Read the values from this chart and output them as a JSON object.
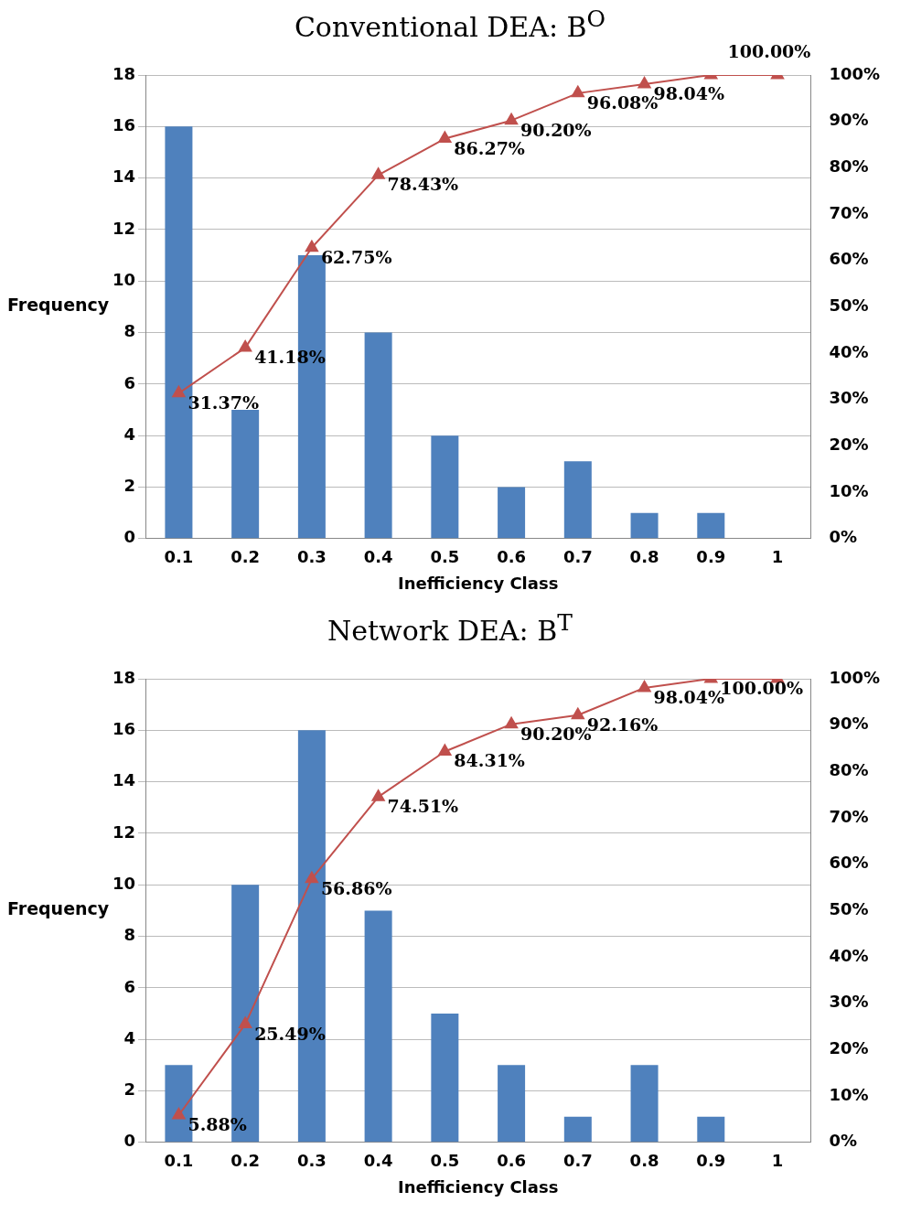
{
  "chart_data": [
    {
      "type": "bar",
      "title": "Conventional DEA: B$^{O}$",
      "xlabel": "Inefficiency Class",
      "ylabel": "Frequency",
      "categories": [
        "0.1",
        "0.2",
        "0.3",
        "0.4",
        "0.5",
        "0.6",
        "0.7",
        "0.8",
        "0.9",
        "1"
      ],
      "series": [
        {
          "color": "#4f81bd",
          "values": [
            16,
            5,
            11,
            8,
            4,
            2,
            3,
            1,
            1,
            0
          ]
        },
        {
          "type": "line",
          "axis": "y2",
          "color": "#c0504d",
          "marker": "triangle",
          "values": [
            31.37,
            41.18,
            62.75,
            78.43,
            86.27,
            90.2,
            96.08,
            98.04,
            100,
            100
          ],
          "value_labels": [
            "31.37%",
            "41.18%",
            "62.75%",
            "78.43%",
            "86.27%",
            "90.20%",
            "96.08%",
            "98.04%",
            null,
            "100.00%"
          ]
        }
      ],
      "ylim": [
        0,
        18
      ],
      "yticks": [
        0,
        2,
        4,
        6,
        8,
        10,
        12,
        14,
        16,
        18
      ],
      "y2lim": [
        0,
        100
      ],
      "y2ticks": [
        {
          "value": 0,
          "label": "0%"
        },
        {
          "value": 10,
          "label": "10%"
        },
        {
          "value": 20,
          "label": "20%"
        },
        {
          "value": 30,
          "label": "30%"
        },
        {
          "value": 40,
          "label": "40%"
        },
        {
          "value": 50,
          "label": "50%"
        },
        {
          "value": 60,
          "label": "60%"
        },
        {
          "value": 70,
          "label": "70%"
        },
        {
          "value": 80,
          "label": "80%"
        },
        {
          "value": 90,
          "label": "90%"
        },
        {
          "value": 100,
          "label": "100%"
        }
      ],
      "grid": "y",
      "legend": false
    },
    {
      "type": "bar",
      "title": "Network DEA: B$^{T}$",
      "xlabel": "Inefficiency Class",
      "ylabel": "Frequency",
      "categories": [
        "0.1",
        "0.2",
        "0.3",
        "0.4",
        "0.5",
        "0.6",
        "0.7",
        "0.8",
        "0.9",
        "1"
      ],
      "series": [
        {
          "color": "#4f81bd",
          "values": [
            3,
            10,
            16,
            9,
            5,
            3,
            1,
            3,
            1,
            0
          ]
        },
        {
          "type": "line",
          "axis": "y2",
          "color": "#c0504d",
          "marker": "triangle",
          "values": [
            5.88,
            25.49,
            56.86,
            74.51,
            84.31,
            90.2,
            92.16,
            98.04,
            100,
            100
          ],
          "value_labels": [
            "5.88%",
            "25.49%",
            "56.86%",
            "74.51%",
            "84.31%",
            "90.20%",
            "92.16%",
            "98.04%",
            "100.00%",
            null
          ]
        }
      ],
      "ylim": [
        0,
        18
      ],
      "yticks": [
        0,
        2,
        4,
        6,
        8,
        10,
        12,
        14,
        16,
        18
      ],
      "y2lim": [
        0,
        100
      ],
      "y2ticks": [
        {
          "value": 0,
          "label": "0%"
        },
        {
          "value": 10,
          "label": "10%"
        },
        {
          "value": 20,
          "label": "20%"
        },
        {
          "value": 30,
          "label": "30%"
        },
        {
          "value": 40,
          "label": "40%"
        },
        {
          "value": 50,
          "label": "50%"
        },
        {
          "value": 60,
          "label": "60%"
        },
        {
          "value": 70,
          "label": "70%"
        },
        {
          "value": 80,
          "label": "80%"
        },
        {
          "value": 90,
          "label": "90%"
        },
        {
          "value": 100,
          "label": "100%"
        }
      ],
      "grid": "y",
      "legend": false
    }
  ]
}
